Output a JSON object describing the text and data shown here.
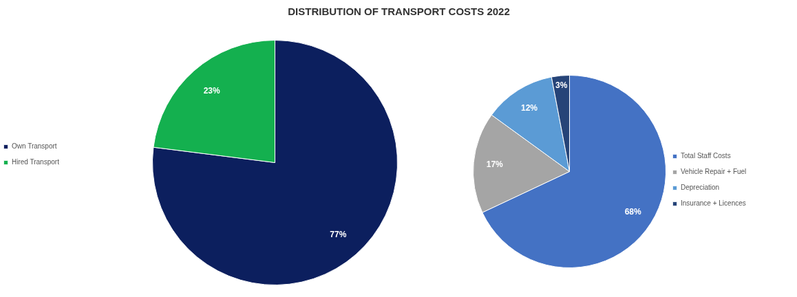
{
  "chart_data": [
    {
      "type": "pie",
      "title": "DISTRIBUTION OF TRANSPORT COSTS 2022",
      "categories": [
        "Own Transport",
        "Hired Transport"
      ],
      "values": [
        77,
        23
      ],
      "value_labels": [
        "77%",
        "23%"
      ],
      "colors": [
        "#0c1f5e",
        "#14b04f"
      ],
      "legend": "left"
    },
    {
      "type": "pie",
      "categories": [
        "Total Staff Costs",
        "Vehicle Repair + Fuel",
        "Depreciation",
        "Insurance + Licences"
      ],
      "values": [
        68,
        17,
        12,
        3
      ],
      "value_labels": [
        "68%",
        "17%",
        "12%",
        "3%"
      ],
      "colors": [
        "#4472c4",
        "#a5a5a5",
        "#5b9bd5",
        "#264478"
      ],
      "legend": "right"
    }
  ]
}
